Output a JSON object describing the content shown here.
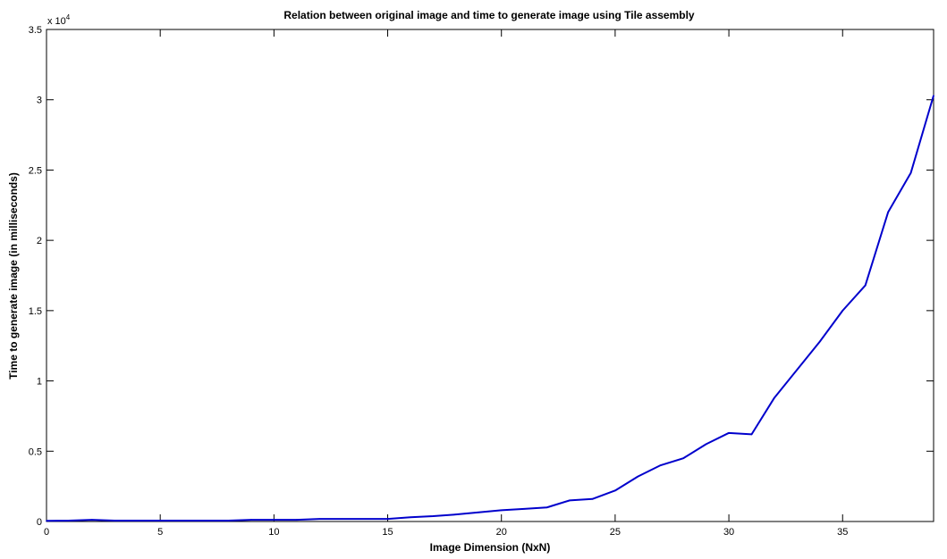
{
  "chart_data": {
    "type": "line",
    "title": "Relation between original image and time to generate image using Tile assembly",
    "xlabel": "Image Dimension (NxN)",
    "ylabel": "Time to generate image (in milliseconds)",
    "y_exponent_label": "x 10",
    "y_exponent_power": "4",
    "xlim": [
      0,
      39
    ],
    "ylim": [
      0,
      35000
    ],
    "x_ticks": [
      0,
      5,
      10,
      15,
      20,
      25,
      30,
      35
    ],
    "x_tick_labels": [
      "0",
      "5",
      "10",
      "15",
      "20",
      "25",
      "30",
      "35"
    ],
    "y_ticks": [
      0,
      5000,
      10000,
      15000,
      20000,
      25000,
      30000,
      35000
    ],
    "y_tick_labels": [
      "0",
      "0.5",
      "1",
      "1.5",
      "2",
      "2.5",
      "3",
      "3.5"
    ],
    "grid": false,
    "line_color": "#0000cc",
    "series": [
      {
        "x": [
          0,
          1,
          2,
          3,
          4,
          5,
          6,
          7,
          8,
          9,
          10,
          11,
          12,
          13,
          14,
          15,
          16,
          17,
          18,
          19,
          20,
          21,
          22,
          23,
          24,
          25,
          26,
          27,
          28,
          29,
          30,
          31,
          32,
          33,
          34,
          35,
          36,
          37,
          38,
          39
        ],
        "values": [
          50,
          60,
          120,
          60,
          60,
          60,
          60,
          60,
          60,
          120,
          120,
          120,
          180,
          180,
          180,
          180,
          300,
          380,
          500,
          650,
          800,
          900,
          1000,
          1500,
          1600,
          2200,
          3200,
          4000,
          4500,
          5500,
          6300,
          6200,
          8800,
          10800,
          12800,
          15000,
          16800,
          22000,
          24800,
          30300
        ]
      }
    ]
  }
}
